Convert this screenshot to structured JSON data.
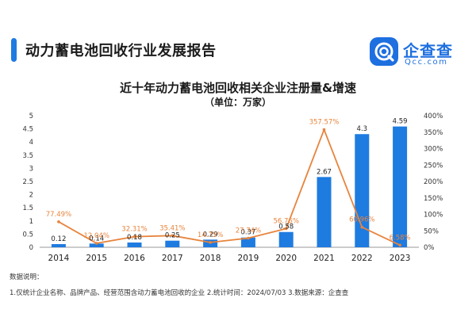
{
  "header": {
    "report_title": "动力蓄电池回收行业发展报告",
    "brand_name": "企查查",
    "brand_domain": "Qcc.com",
    "accent_color": "#1e7be0"
  },
  "chart_data": {
    "type": "bar",
    "title": "近十年动力蓄电池回收相关企业注册量&增速",
    "subtitle": "（单位：万家）",
    "categories": [
      "2014",
      "2015",
      "2016",
      "2017",
      "2018",
      "2019",
      "2020",
      "2021",
      "2022",
      "2023"
    ],
    "series": [
      {
        "type": "bar",
        "axis": "left",
        "color": "#1e7be0",
        "values": [
          0.12,
          0.14,
          0.18,
          0.25,
          0.29,
          0.37,
          0.58,
          2.67,
          4.3,
          4.59
        ],
        "labels": [
          "0.12",
          "0.14",
          "0.18",
          "0.25",
          "0.29",
          "0.37",
          "0.58",
          "2.67",
          "4.3",
          "4.59"
        ]
      },
      {
        "type": "line",
        "axis": "right",
        "color": "#e8843c",
        "values": [
          77.49,
          12.04,
          32.31,
          35.41,
          14.75,
          27.74,
          56.76,
          357.57,
          60.96,
          6.58
        ],
        "labels": [
          "77.49%",
          "12.04%",
          "32.31%",
          "35.41%",
          "14.75%",
          "27.74%",
          "56.76%",
          "357.57%",
          "60.96%",
          "6.58%"
        ]
      }
    ],
    "y_left": {
      "min": 0,
      "max": 5,
      "ticks": [
        "0",
        "0.5",
        "1",
        "1.5",
        "2",
        "2.5",
        "3",
        "3.5",
        "4",
        "4.5",
        "5"
      ]
    },
    "y_right": {
      "min": 0,
      "max": 400,
      "ticks": [
        "0%",
        "50%",
        "100%",
        "150%",
        "200%",
        "250%",
        "300%",
        "350%",
        "400%"
      ]
    },
    "grid": false,
    "legend": "none"
  },
  "notes": {
    "heading": "数据说明：",
    "text": "1.仅统计企业名称、品牌产品、经营范围含动力蓄电池回收的企业  2.统计时间：2024/07/03  3.数据来源：企查查"
  }
}
